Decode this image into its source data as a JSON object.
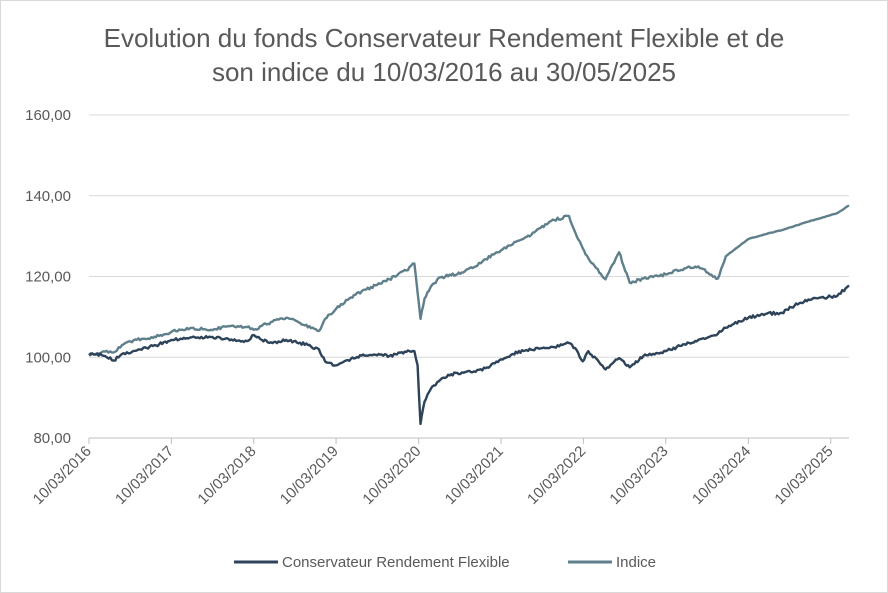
{
  "colors": {
    "fund": "#2d4359",
    "index": "#5f7f8b",
    "grid": "#d9d9d9",
    "axis": "#bfbfbf",
    "text": "#595959"
  },
  "chart_data": {
    "type": "line",
    "title": "Evolution du fonds Conservateur Rendement  Flexible et de son indice du 10/03/2016 au 30/05/2025",
    "title_lines": [
      "Evolution du fonds Conservateur Rendement  Flexible et de",
      "son indice du 10/03/2016 au 30/05/2025"
    ],
    "xlabel": "",
    "ylabel": "",
    "xlim": [
      "2016-03-10",
      "2025-05-30"
    ],
    "ylim": [
      80,
      160
    ],
    "grid": true,
    "legend_position": "bottom",
    "y_ticks": [
      "80,00",
      "100,00",
      "120,00",
      "140,00",
      "160,00"
    ],
    "x_ticks": [
      "10/03/2016",
      "10/03/2017",
      "10/03/2018",
      "10/03/2019",
      "10/03/2020",
      "10/03/2021",
      "10/03/2022",
      "10/03/2023",
      "10/03/2024",
      "10/03/2025"
    ],
    "series": [
      {
        "name": "Conservateur Rendement Flexible",
        "color": "#2d4359",
        "points": [
          [
            "2016-03-10",
            100.5
          ],
          [
            "2016-04-15",
            100.8
          ],
          [
            "2016-05-20",
            100.3
          ],
          [
            "2016-06-27",
            99.2
          ],
          [
            "2016-08-10",
            101.0
          ],
          [
            "2016-10-01",
            101.6
          ],
          [
            "2016-11-20",
            102.3
          ],
          [
            "2017-01-15",
            103.2
          ],
          [
            "2017-03-10",
            104.3
          ],
          [
            "2017-06-01",
            104.9
          ],
          [
            "2017-09-01",
            105.0
          ],
          [
            "2017-12-01",
            104.4
          ],
          [
            "2018-02-09",
            104.0
          ],
          [
            "2018-03-10",
            105.5
          ],
          [
            "2018-04-15",
            104.3
          ],
          [
            "2018-06-01",
            103.5
          ],
          [
            "2018-08-01",
            104.3
          ],
          [
            "2018-10-01",
            103.6
          ],
          [
            "2018-12-24",
            102.0
          ],
          [
            "2019-01-20",
            99.0
          ],
          [
            "2019-03-10",
            98.0
          ],
          [
            "2019-05-01",
            99.3
          ],
          [
            "2019-07-01",
            100.4
          ],
          [
            "2019-09-01",
            100.6
          ],
          [
            "2019-11-01",
            100.3
          ],
          [
            "2020-01-15",
            101.3
          ],
          [
            "2020-02-20",
            101.5
          ],
          [
            "2020-03-05",
            98.0
          ],
          [
            "2020-03-18",
            83.5
          ],
          [
            "2020-04-05",
            89.0
          ],
          [
            "2020-05-01",
            92.0
          ],
          [
            "2020-06-15",
            94.5
          ],
          [
            "2020-08-01",
            95.8
          ],
          [
            "2020-10-01",
            96.3
          ],
          [
            "2020-11-10",
            96.5
          ],
          [
            "2021-01-01",
            97.3
          ],
          [
            "2021-03-10",
            99.5
          ],
          [
            "2021-05-01",
            100.8
          ],
          [
            "2021-07-01",
            101.8
          ],
          [
            "2021-09-01",
            102.2
          ],
          [
            "2021-11-01",
            102.5
          ],
          [
            "2022-01-05",
            103.5
          ],
          [
            "2022-02-01",
            102.3
          ],
          [
            "2022-03-07",
            99.0
          ],
          [
            "2022-04-01",
            101.5
          ],
          [
            "2022-06-16",
            97.0
          ],
          [
            "2022-08-15",
            99.8
          ],
          [
            "2022-10-01",
            97.5
          ],
          [
            "2022-12-01",
            100.3
          ],
          [
            "2023-03-10",
            101.5
          ],
          [
            "2023-06-01",
            103.2
          ],
          [
            "2023-08-01",
            104.3
          ],
          [
            "2023-10-27",
            105.8
          ],
          [
            "2023-12-01",
            107.3
          ],
          [
            "2024-03-10",
            109.8
          ],
          [
            "2024-06-01",
            110.8
          ],
          [
            "2024-08-05",
            111.0
          ],
          [
            "2024-10-01",
            112.8
          ],
          [
            "2024-12-01",
            114.3
          ],
          [
            "2025-03-10",
            115.0
          ],
          [
            "2025-04-08",
            115.2
          ],
          [
            "2025-05-30",
            117.8
          ]
        ]
      },
      {
        "name": "Indice",
        "color": "#5f7f8b",
        "points": [
          [
            "2016-03-10",
            100.5
          ],
          [
            "2016-04-15",
            101.0
          ],
          [
            "2016-05-20",
            101.4
          ],
          [
            "2016-06-27",
            101.2
          ],
          [
            "2016-08-10",
            103.2
          ],
          [
            "2016-10-01",
            104.4
          ],
          [
            "2016-11-20",
            104.5
          ],
          [
            "2017-01-15",
            105.3
          ],
          [
            "2017-03-10",
            106.3
          ],
          [
            "2017-06-01",
            107.2
          ],
          [
            "2017-09-01",
            106.8
          ],
          [
            "2017-12-01",
            107.8
          ],
          [
            "2018-02-09",
            107.5
          ],
          [
            "2018-03-10",
            106.8
          ],
          [
            "2018-04-15",
            107.8
          ],
          [
            "2018-06-01",
            108.8
          ],
          [
            "2018-08-01",
            109.8
          ],
          [
            "2018-10-01",
            108.5
          ],
          [
            "2018-12-24",
            106.5
          ],
          [
            "2019-01-20",
            109.5
          ],
          [
            "2019-03-10",
            112.0
          ],
          [
            "2019-05-01",
            114.2
          ],
          [
            "2019-07-01",
            116.3
          ],
          [
            "2019-09-01",
            117.8
          ],
          [
            "2019-11-01",
            119.3
          ],
          [
            "2020-01-15",
            121.5
          ],
          [
            "2020-02-20",
            123.2
          ],
          [
            "2020-03-05",
            116.0
          ],
          [
            "2020-03-18",
            109.5
          ],
          [
            "2020-04-05",
            114.5
          ],
          [
            "2020-05-01",
            117.3
          ],
          [
            "2020-06-15",
            119.8
          ],
          [
            "2020-08-01",
            120.3
          ],
          [
            "2020-10-01",
            121.3
          ],
          [
            "2020-11-10",
            122.3
          ],
          [
            "2021-01-01",
            124.3
          ],
          [
            "2021-03-10",
            126.5
          ],
          [
            "2021-05-01",
            128.0
          ],
          [
            "2021-07-01",
            129.8
          ],
          [
            "2021-09-01",
            132.0
          ],
          [
            "2021-11-01",
            134.0
          ],
          [
            "2022-01-05",
            135.0
          ],
          [
            "2022-02-01",
            131.0
          ],
          [
            "2022-03-07",
            127.0
          ],
          [
            "2022-04-01",
            124.5
          ],
          [
            "2022-06-16",
            119.3
          ],
          [
            "2022-08-15",
            126.0
          ],
          [
            "2022-10-01",
            118.5
          ],
          [
            "2022-12-01",
            119.5
          ],
          [
            "2023-03-10",
            120.5
          ],
          [
            "2023-06-01",
            122.0
          ],
          [
            "2023-08-01",
            122.5
          ],
          [
            "2023-10-27",
            119.5
          ],
          [
            "2023-12-01",
            125.0
          ],
          [
            "2024-03-10",
            129.3
          ],
          [
            "2024-06-01",
            130.6
          ],
          [
            "2024-08-05",
            131.5
          ],
          [
            "2024-10-01",
            132.5
          ],
          [
            "2024-12-01",
            133.6
          ],
          [
            "2025-03-10",
            135.2
          ],
          [
            "2025-04-08",
            135.7
          ],
          [
            "2025-05-30",
            137.6
          ]
        ]
      }
    ]
  }
}
